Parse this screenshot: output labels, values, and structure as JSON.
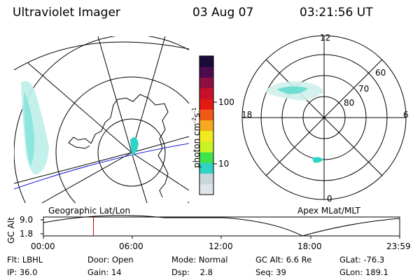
{
  "header": {
    "instrument": "Ultraviolet Imager",
    "date": "03 Aug 07",
    "time": "03:21:56 UT"
  },
  "colorbar": {
    "unit_label": "photon cm",
    "unit_exp1": "-2",
    "unit_s": "s",
    "unit_exp2": "-1",
    "ticks": [
      "100",
      "10"
    ],
    "scale": "log",
    "colors": [
      "#dfe6ea",
      "#c9d6dc",
      "#2fd3c4",
      "#41e34c",
      "#c9f227",
      "#f2ea20",
      "#f6a81e",
      "#ef5a19",
      "#e31a12",
      "#c8102a",
      "#8e1042",
      "#4c0b4d",
      "#1b0a3a"
    ]
  },
  "left_panel": {
    "projection_label": "Geographic Lat/Lon"
  },
  "right_panel": {
    "projection_label": "Apex MLat/MLT",
    "mlt_labels": {
      "top": "12",
      "left": "18",
      "right": "6",
      "bottom": "0"
    },
    "lat_labels": [
      "60",
      "70",
      "80"
    ]
  },
  "timeline": {
    "axis_title": "GC Alt",
    "y_ticks": [
      "9.0",
      "1.8"
    ],
    "x_ticks": [
      "00:00",
      "06:00",
      "12:00",
      "18:00",
      "23:59"
    ],
    "current_time_hours": 3.37,
    "marker_color": "#cc0000"
  },
  "footer": {
    "row1": [
      {
        "label": "Flt:",
        "value": "LBHL"
      },
      {
        "label": "Door:",
        "value": "Open"
      },
      {
        "label": "Mode:",
        "value": "Normal"
      },
      {
        "label": "GC Alt:",
        "value": "6.6 Re"
      },
      {
        "label": "GLat:",
        "value": "-76.3"
      }
    ],
    "row2": [
      {
        "label": "IP:",
        "value": "36.0"
      },
      {
        "label": "Gain:",
        "value": "14"
      },
      {
        "label": "Dsp:",
        "value": "2.8"
      },
      {
        "label": "Seq:",
        "value": "39"
      },
      {
        "label": "GLon:",
        "value": "189.1"
      }
    ]
  }
}
